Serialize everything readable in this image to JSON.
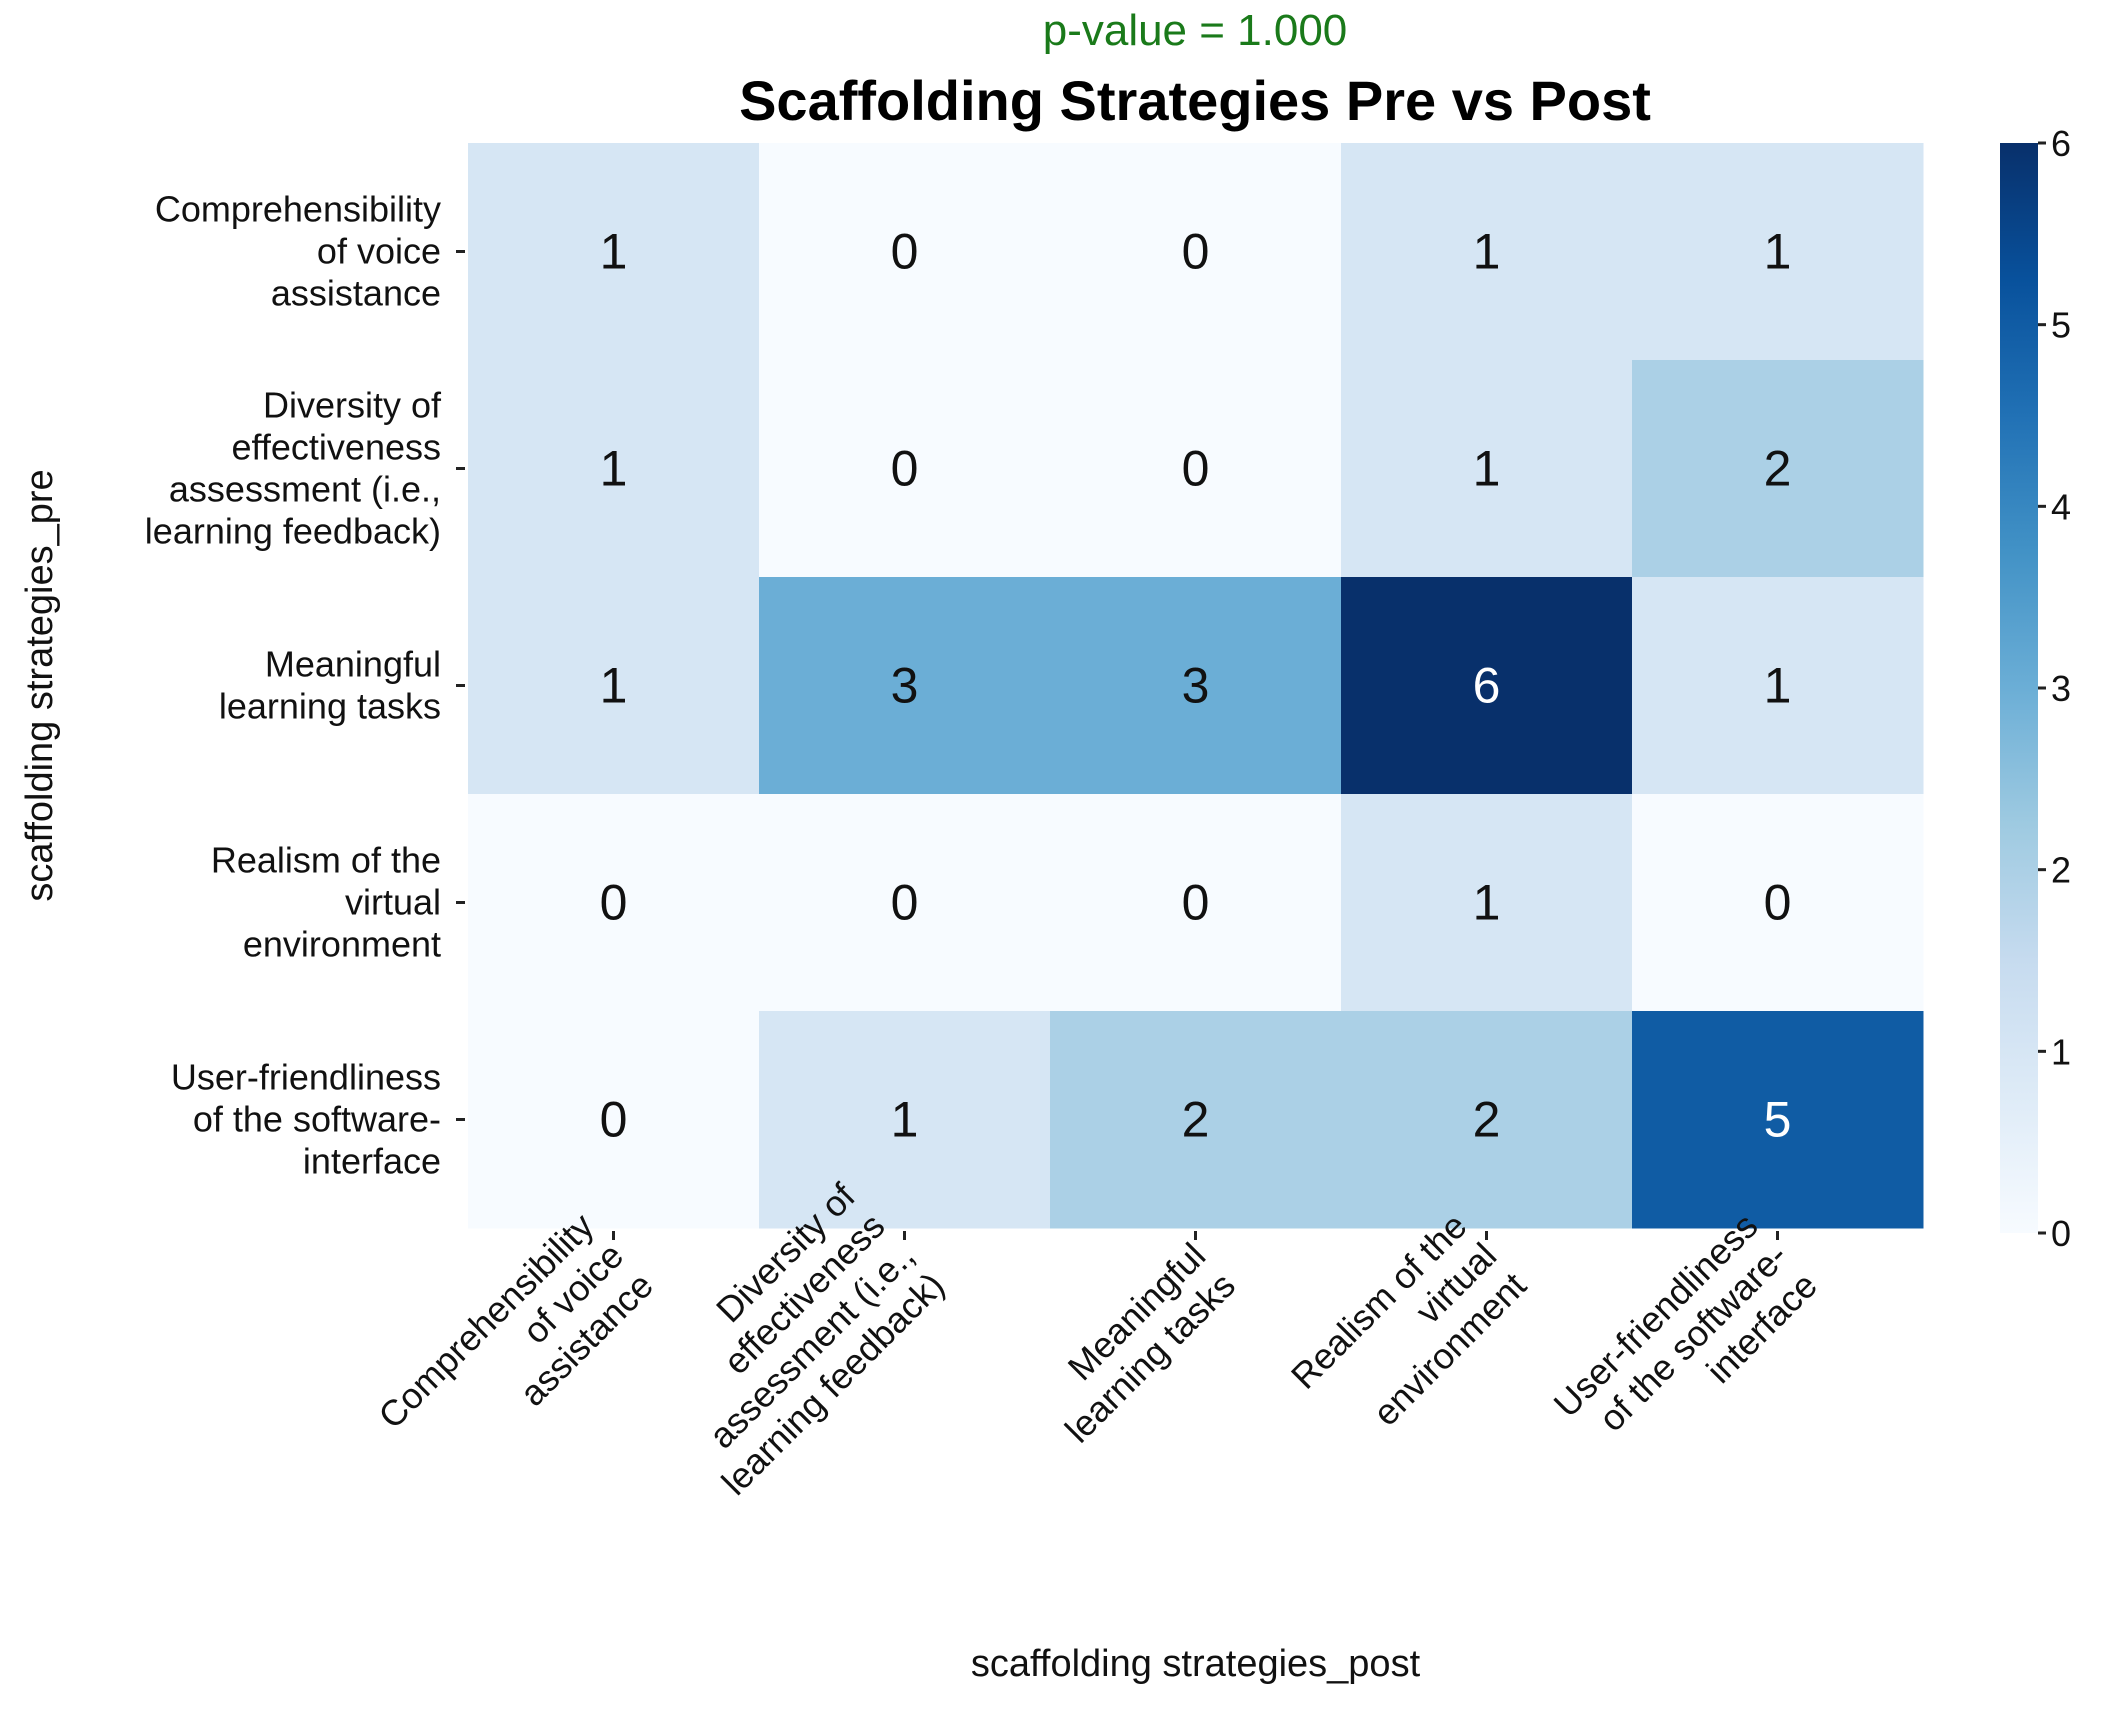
{
  "chart_data": {
    "type": "heatmap",
    "subtitle": "p-value = 1.000",
    "subtitle_color": "#1a7a1a",
    "title": "Scaffolding Strategies Pre vs Post",
    "xlabel": "scaffolding strategies_post",
    "ylabel": "scaffolding strategies_pre",
    "x_categories": [
      [
        "Comprehensibility",
        "of voice",
        "assistance"
      ],
      [
        "Diversity of",
        "effectiveness",
        "assessment (i.e.,",
        "learning feedback)"
      ],
      [
        "Meaningful",
        "learning tasks"
      ],
      [
        "Realism of the",
        "virtual",
        "environment"
      ],
      [
        "User-friendliness",
        "of the software-",
        "interface"
      ]
    ],
    "y_categories": [
      [
        "Comprehensibility",
        "of voice",
        "assistance"
      ],
      [
        "Diversity of",
        "effectiveness",
        "assessment (i.e.,",
        "learning feedback)"
      ],
      [
        "Meaningful",
        "learning tasks"
      ],
      [
        "Realism of the",
        "virtual",
        "environment"
      ],
      [
        "User-friendliness",
        "of the software-",
        "interface"
      ]
    ],
    "values": [
      [
        1,
        0,
        0,
        1,
        1
      ],
      [
        1,
        0,
        0,
        1,
        2
      ],
      [
        1,
        3,
        3,
        6,
        1
      ],
      [
        0,
        0,
        0,
        1,
        0
      ],
      [
        0,
        1,
        2,
        2,
        5
      ]
    ],
    "colorscale": "Blues",
    "vmin": 0,
    "vmax": 6,
    "colorbar_ticks": [
      0,
      1,
      2,
      3,
      4,
      5,
      6
    ],
    "grid": false,
    "legend": "colorbar-right"
  }
}
